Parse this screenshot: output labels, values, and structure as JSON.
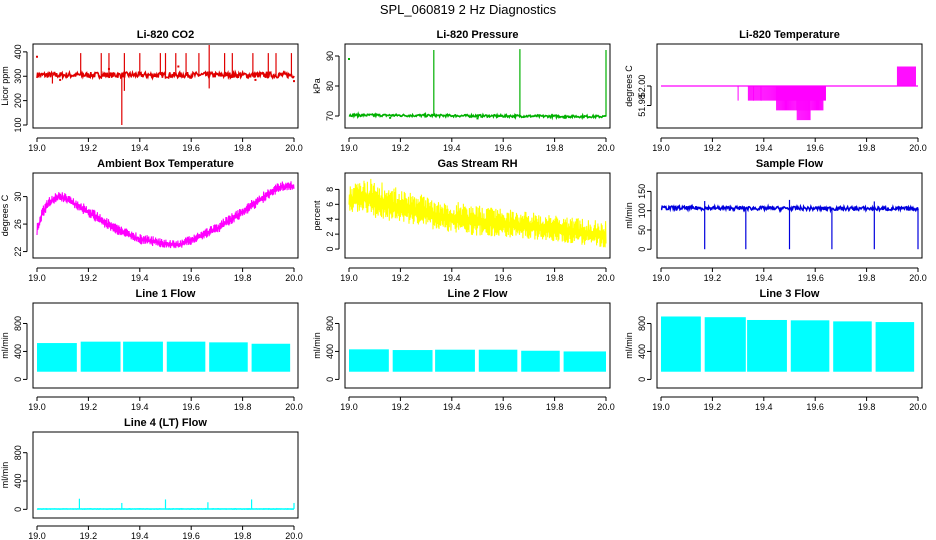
{
  "figure_title": "SPL_060819  2 Hz Diagnostics",
  "chart_data": [
    {
      "id": "co2",
      "type": "line",
      "title": "Li-820 CO2",
      "ylabel": "Licor ppm",
      "xlabel": "",
      "color": "#e00000",
      "xlim": [
        19.0,
        20.0
      ],
      "xticks": [
        19.0,
        19.2,
        19.4,
        19.6,
        19.8,
        20.0
      ],
      "xtick_labels": [
        "19.0",
        "19.2",
        "19.4",
        "19.6",
        "19.8",
        "20.0"
      ],
      "ylim": [
        100,
        420
      ],
      "yticks": [
        100,
        200,
        300,
        400
      ],
      "ytick_labels": [
        "100",
        "200",
        "300",
        "400"
      ],
      "pattern": "noise",
      "series": [
        {
          "name": "CO2",
          "baseline": [
            [
              19.0,
              305
            ],
            [
              20.0,
              305
            ]
          ],
          "noise": 12,
          "spikes_up": [
            [
              19.17,
              395
            ],
            [
              19.25,
              395
            ],
            [
              19.28,
              395
            ],
            [
              19.34,
              395
            ],
            [
              19.4,
              395
            ],
            [
              19.48,
              395
            ],
            [
              19.5,
              395
            ],
            [
              19.54,
              395
            ],
            [
              19.58,
              395
            ],
            [
              19.63,
              395
            ],
            [
              19.67,
              430
            ],
            [
              19.73,
              395
            ],
            [
              19.76,
              395
            ],
            [
              19.84,
              395
            ],
            [
              19.9,
              395
            ],
            [
              19.93,
              395
            ],
            [
              19.99,
              395
            ]
          ],
          "spikes_down": [
            [
              19.33,
              100
            ],
            [
              19.06,
              270
            ],
            [
              19.34,
              240
            ],
            [
              19.67,
              250
            ]
          ],
          "dots": [
            [
              19.0,
              380
            ],
            [
              19.05,
              310
            ],
            [
              19.09,
              285
            ],
            [
              19.28,
              330
            ],
            [
              19.55,
              340
            ],
            [
              19.85,
              285
            ],
            [
              20.0,
              280
            ]
          ]
        }
      ]
    },
    {
      "id": "pressure",
      "type": "line",
      "title": "Li-820 Pressure",
      "ylabel": "kPa",
      "xlabel": "",
      "color": "#00b000",
      "xlim": [
        19.0,
        20.0
      ],
      "xticks": [
        19.0,
        19.2,
        19.4,
        19.6,
        19.8,
        20.0
      ],
      "xtick_labels": [
        "19.0",
        "19.2",
        "19.4",
        "19.6",
        "19.8",
        "20.0"
      ],
      "ylim": [
        67,
        93
      ],
      "yticks": [
        70,
        80,
        90
      ],
      "ytick_labels": [
        "70",
        "80",
        "90"
      ],
      "pattern": "noise",
      "series": [
        {
          "name": "Pressure",
          "baseline": [
            [
              19.0,
              70.3
            ],
            [
              20.0,
              69.8
            ]
          ],
          "noise": 0.4,
          "spikes_up": [
            [
              19.33,
              92
            ],
            [
              19.665,
              92.3
            ],
            [
              20.0,
              92
            ]
          ],
          "spikes_down": [],
          "dots": [
            [
              19.0,
              89
            ],
            [
              19.16,
              69.4
            ],
            [
              19.5,
              69.2
            ],
            [
              19.84,
              69.4
            ]
          ]
        }
      ]
    },
    {
      "id": "licor_temp",
      "type": "line",
      "title": "Li-820 Temperature",
      "ylabel": "degrees C",
      "xlabel": "",
      "color": "#ff00ff",
      "xlim": [
        19.0,
        20.0
      ],
      "xticks": [
        19.0,
        19.2,
        19.4,
        19.6,
        19.8,
        20.0
      ],
      "xtick_labels": [
        "19.0",
        "19.2",
        "19.4",
        "19.6",
        "19.8",
        "20.0"
      ],
      "ylim": [
        51.96,
        52.04
      ],
      "yticks": [
        51.98,
        52.0
      ],
      "ytick_labels": [
        "51.98",
        "52.00"
      ],
      "pattern": "step",
      "series": [
        {
          "name": "Temperature",
          "baseline": [
            [
              19.0,
              52.0
            ],
            [
              20.0,
              52.0
            ]
          ],
          "dense_down": [
            [
              19.34,
              19.64,
              51.985
            ],
            [
              19.45,
              19.63,
              51.975
            ],
            [
              19.53,
              19.58,
              51.965
            ]
          ],
          "sparse_down": [
            [
              19.3,
              51.985
            ],
            [
              19.36,
              51.985
            ],
            [
              19.39,
              51.985
            ]
          ],
          "dense_up": [
            [
              19.92,
              19.99,
              52.02
            ]
          ]
        }
      ]
    },
    {
      "id": "box_temp",
      "type": "line",
      "title": "Ambient Box Temperature",
      "ylabel": "degrees C",
      "xlabel": "",
      "color": "#ff00ff",
      "xlim": [
        19.0,
        20.0
      ],
      "xticks": [
        19.0,
        19.2,
        19.4,
        19.6,
        19.8,
        20.0
      ],
      "xtick_labels": [
        "19.0",
        "19.2",
        "19.4",
        "19.6",
        "19.8",
        "20.0"
      ],
      "ylim": [
        21.5,
        33
      ],
      "yticks": [
        22,
        26,
        30
      ],
      "ytick_labels": [
        "22",
        "26",
        "30"
      ],
      "pattern": "band",
      "series": [
        {
          "name": "Box Temp",
          "upper": [
            [
              19.0,
              26
            ],
            [
              19.02,
              28.5
            ],
            [
              19.05,
              30.2
            ],
            [
              19.09,
              30.8
            ],
            [
              19.13,
              30.2
            ],
            [
              19.2,
              28.6
            ],
            [
              19.3,
              26.2
            ],
            [
              19.4,
              24.6
            ],
            [
              19.5,
              23.9
            ],
            [
              19.55,
              23.6
            ],
            [
              19.6,
              24.4
            ],
            [
              19.7,
              26.2
            ],
            [
              19.8,
              28.6
            ],
            [
              19.9,
              31.3
            ],
            [
              19.95,
              32.2
            ],
            [
              20.0,
              32.3
            ]
          ],
          "lower": [
            [
              19.0,
              24.2
            ],
            [
              19.02,
              26.8
            ],
            [
              19.05,
              28.6
            ],
            [
              19.09,
              29.4
            ],
            [
              19.13,
              28.6
            ],
            [
              19.2,
              27.0
            ],
            [
              19.3,
              24.6
            ],
            [
              19.4,
              23.1
            ],
            [
              19.5,
              22.5
            ],
            [
              19.55,
              22.4
            ],
            [
              19.6,
              23.0
            ],
            [
              19.7,
              24.6
            ],
            [
              19.8,
              27.0
            ],
            [
              19.9,
              29.6
            ],
            [
              19.95,
              30.8
            ],
            [
              20.0,
              31.0
            ]
          ]
        }
      ]
    },
    {
      "id": "rh",
      "type": "line",
      "title": "Gas Stream RH",
      "ylabel": "percent",
      "xlabel": "",
      "color": "#ffff00",
      "xlim": [
        19.0,
        20.0
      ],
      "xticks": [
        19.0,
        19.2,
        19.4,
        19.6,
        19.8,
        20.0
      ],
      "xtick_labels": [
        "19.0",
        "19.2",
        "19.4",
        "19.6",
        "19.8",
        "20.0"
      ],
      "ylim": [
        -0.8,
        9.8
      ],
      "yticks": [
        0,
        2,
        4,
        6,
        8
      ],
      "ytick_labels": [
        "0",
        "2",
        "4",
        "6",
        "8"
      ],
      "pattern": "band",
      "series": [
        {
          "name": "RH",
          "upper": [
            [
              19.0,
              8.6
            ],
            [
              19.05,
              9.3
            ],
            [
              19.1,
              9.5
            ],
            [
              19.15,
              8.6
            ],
            [
              19.25,
              7.6
            ],
            [
              19.35,
              6.7
            ],
            [
              19.5,
              5.9
            ],
            [
              19.65,
              5.2
            ],
            [
              19.8,
              4.6
            ],
            [
              19.9,
              4.2
            ],
            [
              20.0,
              3.8
            ]
          ],
          "lower": [
            [
              19.0,
              4.8
            ],
            [
              19.05,
              5.0
            ],
            [
              19.1,
              4.2
            ],
            [
              19.2,
              3.4
            ],
            [
              19.3,
              2.8
            ],
            [
              19.4,
              2.2
            ],
            [
              19.5,
              1.8
            ],
            [
              19.65,
              1.5
            ],
            [
              19.8,
              1.0
            ],
            [
              19.9,
              0.6
            ],
            [
              20.0,
              0.2
            ]
          ]
        }
      ]
    },
    {
      "id": "sample_flow",
      "type": "line",
      "title": "Sample Flow",
      "ylabel": "ml/min",
      "xlabel": "",
      "color": "#0000dd",
      "xlim": [
        19.0,
        20.0
      ],
      "xticks": [
        19.0,
        19.2,
        19.4,
        19.6,
        19.8,
        20.0
      ],
      "xtick_labels": [
        "19.0",
        "19.2",
        "19.4",
        "19.6",
        "19.8",
        "20.0"
      ],
      "ylim": [
        -15,
        190
      ],
      "yticks": [
        0,
        50,
        100,
        150
      ],
      "ytick_labels": [
        "0",
        "50",
        "100",
        "150"
      ],
      "pattern": "noise",
      "series": [
        {
          "name": "Sample Flow",
          "baseline": [
            [
              19.0,
              107
            ],
            [
              20.0,
              105
            ]
          ],
          "noise": 5,
          "spikes_up": [
            [
              19.17,
              125
            ],
            [
              19.5,
              128
            ],
            [
              19.83,
              124
            ]
          ],
          "spikes_down": [
            [
              19.17,
              0
            ],
            [
              19.33,
              0
            ],
            [
              19.5,
              0
            ],
            [
              19.665,
              0
            ],
            [
              19.83,
              0
            ],
            [
              20.0,
              0
            ]
          ],
          "dots": []
        }
      ]
    },
    {
      "id": "line1",
      "type": "area",
      "title": "Line 1 Flow",
      "ylabel": "ml/min",
      "xlabel": "",
      "color": "#00ffff",
      "xlim": [
        19.0,
        20.0
      ],
      "xticks": [
        19.0,
        19.2,
        19.4,
        19.6,
        19.8,
        20.0
      ],
      "xtick_labels": [
        "19.0",
        "19.2",
        "19.4",
        "19.6",
        "19.8",
        "20.0"
      ],
      "ylim": [
        -80,
        1050
      ],
      "yticks": [
        0,
        400,
        800
      ],
      "ytick_labels": [
        "0",
        "400",
        "800"
      ],
      "pattern": "blocks",
      "series": [
        {
          "name": "Line 1",
          "blocks": [
            [
              19.0,
              19.155,
              520
            ],
            [
              19.17,
              19.325,
              540
            ],
            [
              19.335,
              19.49,
              540
            ],
            [
              19.505,
              19.655,
              540
            ],
            [
              19.67,
              19.82,
              530
            ],
            [
              19.835,
              19.985,
              510
            ]
          ],
          "block_low": 110
        }
      ]
    },
    {
      "id": "line2",
      "type": "area",
      "title": "Line 2 Flow",
      "ylabel": "ml/min",
      "xlabel": "",
      "color": "#00ffff",
      "xlim": [
        19.0,
        20.0
      ],
      "xticks": [
        19.0,
        19.2,
        19.4,
        19.6,
        19.8,
        20.0
      ],
      "xtick_labels": [
        "19.0",
        "19.2",
        "19.4",
        "19.6",
        "19.8",
        "20.0"
      ],
      "ylim": [
        -80,
        1050
      ],
      "yticks": [
        0,
        400,
        800
      ],
      "ytick_labels": [
        "0",
        "400",
        "800"
      ],
      "pattern": "blocks",
      "series": [
        {
          "name": "Line 2",
          "blocks": [
            [
              19.0,
              19.155,
              430
            ],
            [
              19.17,
              19.325,
              420
            ],
            [
              19.335,
              19.49,
              425
            ],
            [
              19.505,
              19.655,
              425
            ],
            [
              19.67,
              19.82,
              410
            ],
            [
              19.835,
              20.0,
              400
            ]
          ],
          "block_low": 110
        }
      ]
    },
    {
      "id": "line3",
      "type": "area",
      "title": "Line 3 Flow",
      "ylabel": "ml/min",
      "xlabel": "",
      "color": "#00ffff",
      "xlim": [
        19.0,
        20.0
      ],
      "xticks": [
        19.0,
        19.2,
        19.4,
        19.6,
        19.8,
        20.0
      ],
      "xtick_labels": [
        "19.0",
        "19.2",
        "19.4",
        "19.6",
        "19.8",
        "20.0"
      ],
      "ylim": [
        -80,
        1050
      ],
      "yticks": [
        0,
        400,
        800
      ],
      "ytick_labels": [
        "0",
        "400",
        "800"
      ],
      "pattern": "blocks",
      "series": [
        {
          "name": "Line 3",
          "blocks": [
            [
              19.0,
              19.155,
              900
            ],
            [
              19.17,
              19.33,
              890
            ],
            [
              19.335,
              19.49,
              850
            ],
            [
              19.505,
              19.655,
              845
            ],
            [
              19.67,
              19.82,
              830
            ],
            [
              19.835,
              19.985,
              820
            ]
          ],
          "block_low": 110
        }
      ]
    },
    {
      "id": "line4",
      "type": "line",
      "title": "Line 4 (LT) Flow",
      "ylabel": "ml/min",
      "xlabel": "",
      "color": "#00ffff",
      "xlim": [
        19.0,
        20.0
      ],
      "xticks": [
        19.0,
        19.2,
        19.4,
        19.6,
        19.8,
        20.0
      ],
      "xtick_labels": [
        "19.0",
        "19.2",
        "19.4",
        "19.6",
        "19.8",
        "20.0"
      ],
      "ylim": [
        -80,
        1050
      ],
      "yticks": [
        0,
        400,
        800
      ],
      "ytick_labels": [
        "0",
        "400",
        "800"
      ],
      "pattern": "noise",
      "series": [
        {
          "name": "Line 4",
          "baseline": [
            [
              19.0,
              5
            ],
            [
              20.0,
              5
            ]
          ],
          "noise": 2,
          "spikes_up": [
            [
              19.165,
              150
            ],
            [
              19.33,
              90
            ],
            [
              19.5,
              140
            ],
            [
              19.665,
              100
            ],
            [
              19.835,
              140
            ],
            [
              20.0,
              90
            ]
          ],
          "spikes_down": [],
          "dots": []
        }
      ]
    }
  ]
}
